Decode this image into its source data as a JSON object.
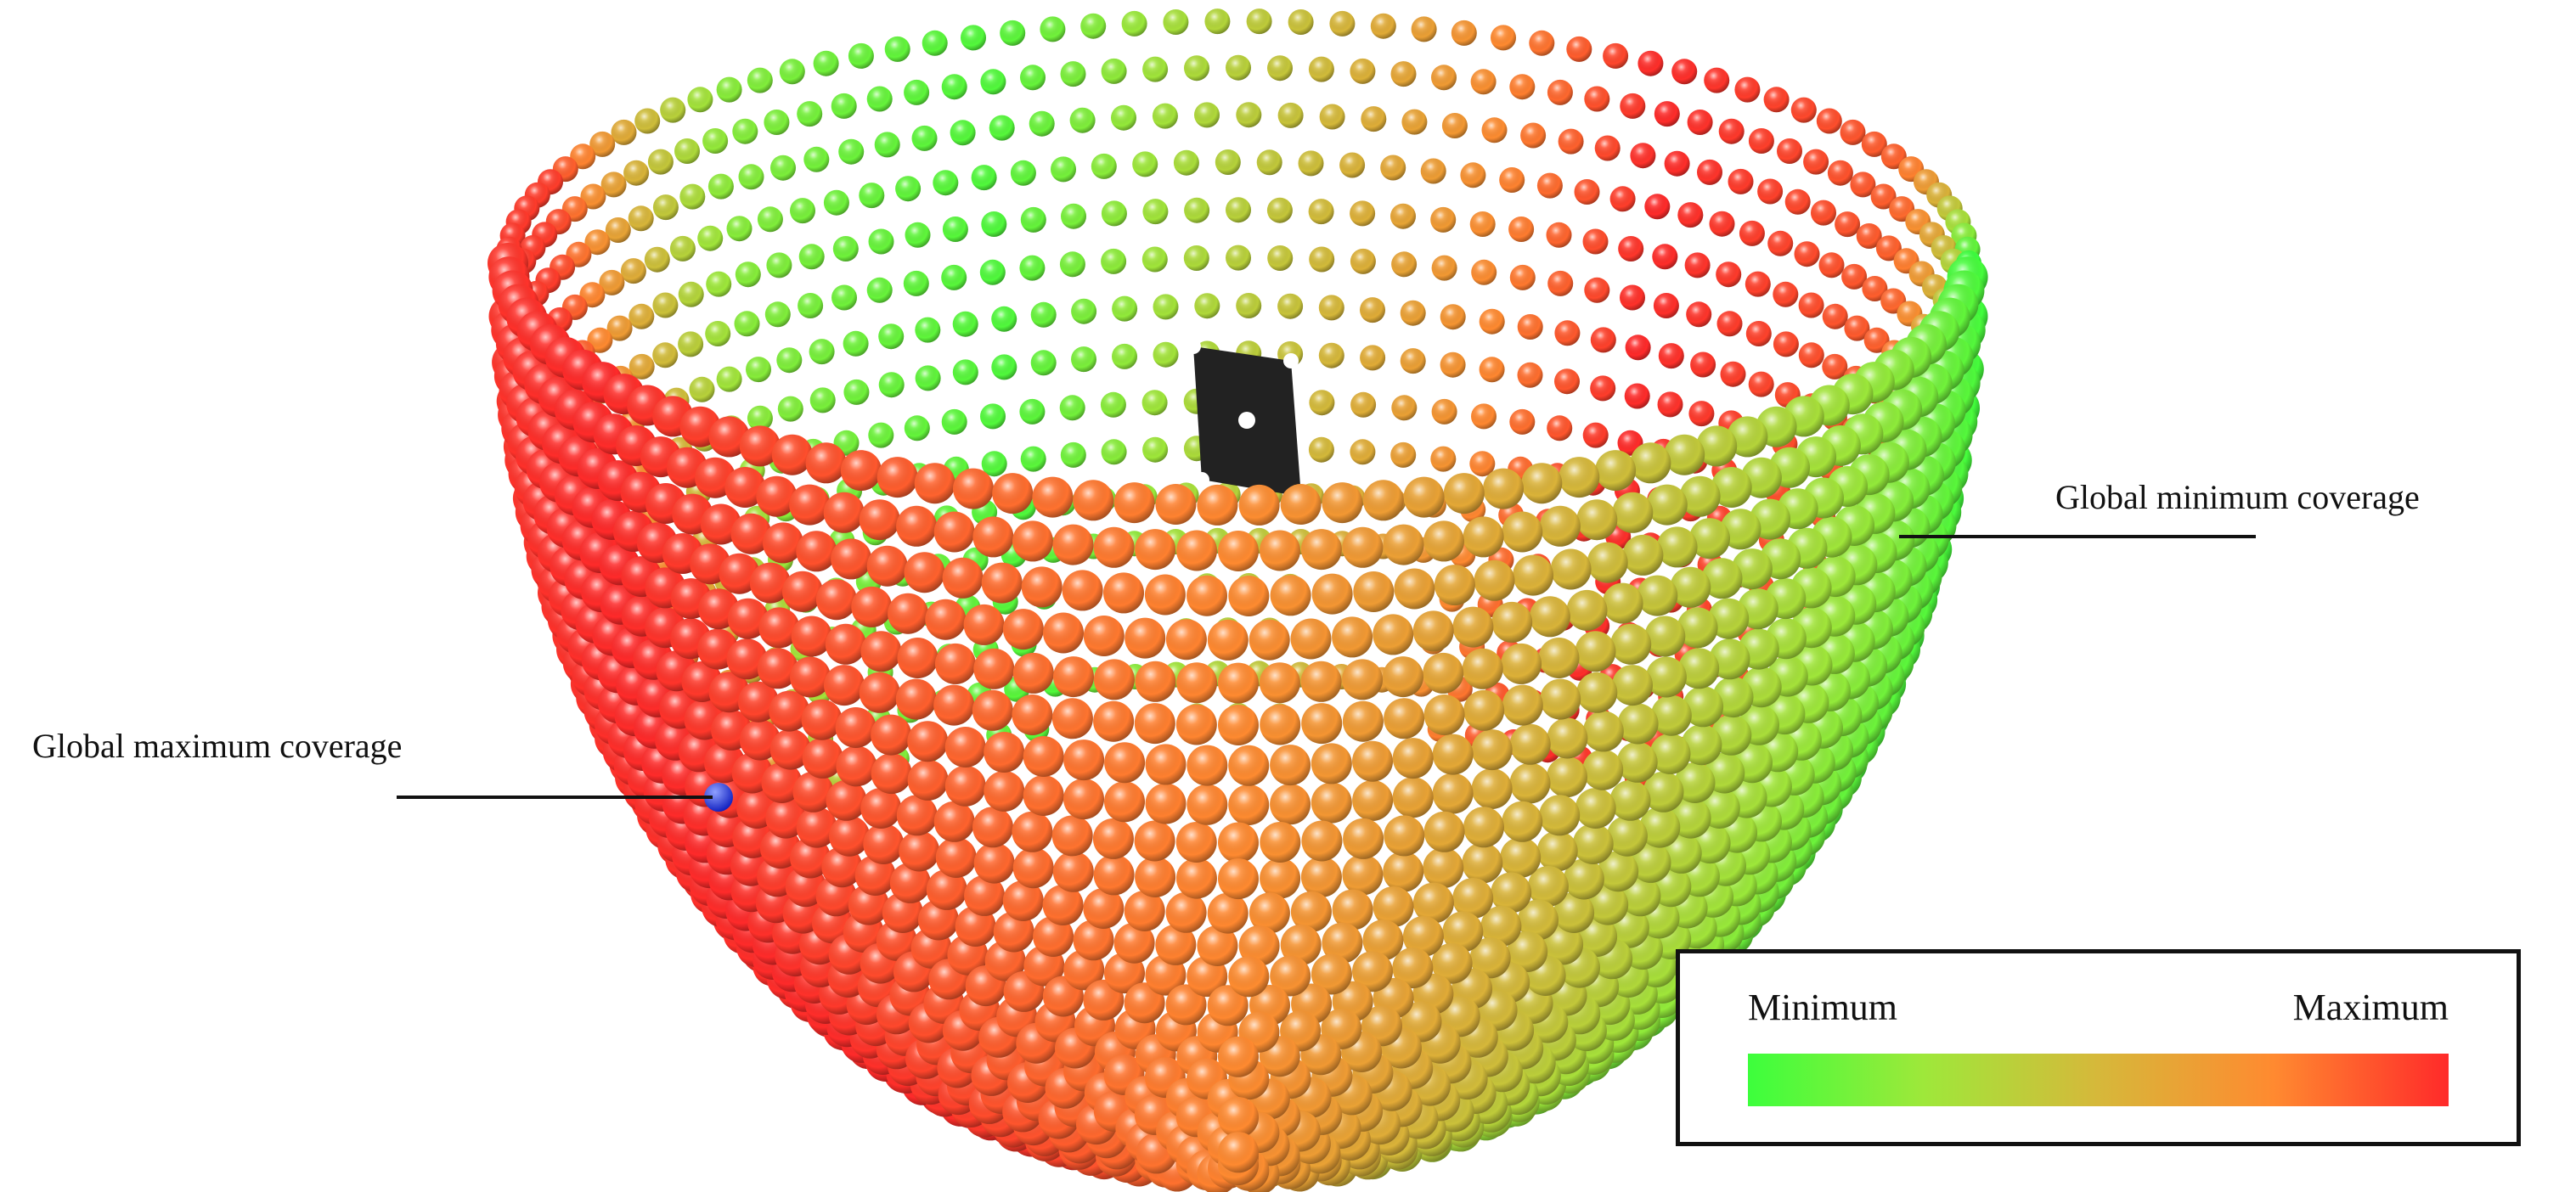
{
  "annotations": {
    "max_label": "Global maximum coverage",
    "min_label": "Global minimum coverage"
  },
  "legend": {
    "min_label": "Minimum",
    "max_label": "Maximum",
    "gradient_colors": [
      "#3cff3c",
      "#9ee83a",
      "#d6b83a",
      "#ff8a30",
      "#ff2a2a"
    ]
  },
  "colors": {
    "max_marker": "#2233ee",
    "sensor": "#222222"
  }
}
